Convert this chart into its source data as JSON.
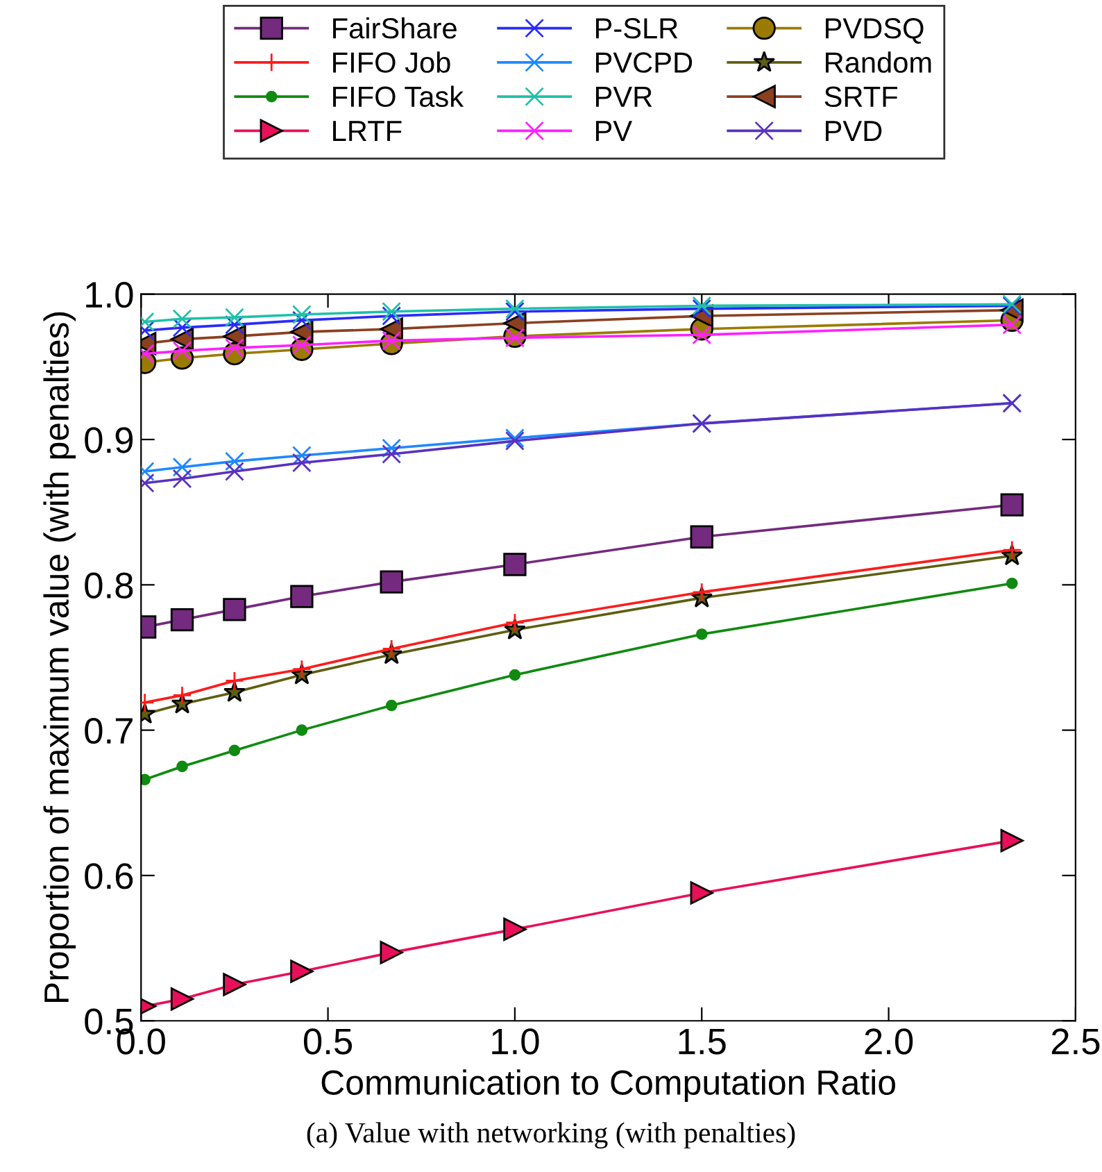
{
  "chart_data": {
    "type": "line",
    "xlabel": "Communication to Computation Ratio",
    "ylabel": "Proportion of maximum value (with penalties)",
    "x": [
      0.01,
      0.11,
      0.25,
      0.43,
      0.67,
      1.0,
      1.5,
      2.33
    ],
    "xlim": [
      0.0,
      2.5
    ],
    "xticks": [
      {
        "value": 0.0,
        "label": "0.0"
      },
      0.5,
      {
        "value": 1.0,
        "label": "1.0"
      },
      1.5,
      {
        "value": 2.0,
        "label": "2.0"
      },
      2.5
    ],
    "ylim": [
      0.5,
      1.0
    ],
    "yticks": [
      0.5,
      0.6,
      0.7,
      0.8,
      0.9,
      {
        "value": 1.0,
        "label": "1.0"
      }
    ],
    "grid": false,
    "legend": "top",
    "line_style": "solid",
    "annotations": [
      "(a) Value with networking (with penalties)"
    ],
    "series": [
      {
        "name": "FairShare",
        "color": "#742a7e",
        "marker": "square",
        "values": [
          0.771,
          0.776,
          0.783,
          0.792,
          0.802,
          0.814,
          0.833,
          0.855
        ]
      },
      {
        "name": "FIFO Job",
        "color": "#ff1a1a",
        "marker": "plus",
        "values": [
          0.719,
          0.724,
          0.734,
          0.742,
          0.756,
          0.774,
          0.795,
          0.824
        ]
      },
      {
        "name": "FIFO Task",
        "color": "#108a10",
        "marker": "point",
        "values": [
          0.666,
          0.675,
          0.686,
          0.7,
          0.717,
          0.738,
          0.766,
          0.801
        ]
      },
      {
        "name": "LRTF",
        "color": "#e8105a",
        "marker": "triangle-right",
        "values": [
          0.51,
          0.515,
          0.525,
          0.534,
          0.547,
          0.563,
          0.588,
          0.624
        ]
      },
      {
        "name": "P-SLR",
        "color": "#2a2aff",
        "marker": "cross",
        "values": [
          0.975,
          0.977,
          0.979,
          0.982,
          0.985,
          0.988,
          0.99,
          0.992
        ]
      },
      {
        "name": "PVCPD",
        "color": "#1e88ff",
        "marker": "cross",
        "values": [
          0.878,
          0.881,
          0.885,
          0.889,
          0.894,
          0.901,
          0.911,
          0.925
        ]
      },
      {
        "name": "PVR",
        "color": "#20c0a8",
        "marker": "cross",
        "values": [
          0.981,
          0.983,
          0.984,
          0.986,
          0.988,
          0.99,
          0.992,
          0.993
        ]
      },
      {
        "name": "PV",
        "color": "#ff20ff",
        "marker": "cross",
        "values": [
          0.959,
          0.961,
          0.963,
          0.965,
          0.968,
          0.97,
          0.972,
          0.979
        ]
      },
      {
        "name": "PVDSQ",
        "color": "#9a7b00",
        "marker": "circle",
        "values": [
          0.953,
          0.956,
          0.959,
          0.962,
          0.966,
          0.971,
          0.976,
          0.982
        ]
      },
      {
        "name": "Random",
        "color": "#5e5e10",
        "marker": "star",
        "values": [
          0.711,
          0.718,
          0.726,
          0.738,
          0.752,
          0.769,
          0.791,
          0.82
        ]
      },
      {
        "name": "SRTF",
        "color": "#8b4020",
        "marker": "triangle-left",
        "values": [
          0.966,
          0.969,
          0.971,
          0.974,
          0.976,
          0.98,
          0.985,
          0.989
        ]
      },
      {
        "name": "PVD",
        "color": "#5a30c0",
        "marker": "cross",
        "values": [
          0.87,
          0.873,
          0.878,
          0.884,
          0.89,
          0.899,
          0.911,
          0.925
        ]
      }
    ]
  }
}
